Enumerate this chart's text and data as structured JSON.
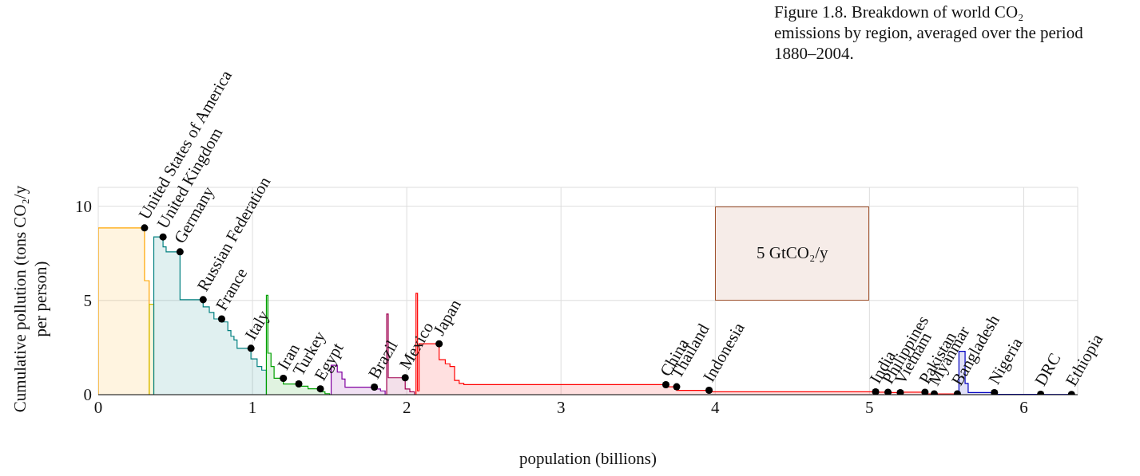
{
  "chart_data": {
    "type": "area",
    "title": "Figure 1.8. Breakdown of world CO₂ emissions by region, averaged over the period 1880–2004.",
    "xlabel": "population (billions)",
    "ylabel": "Cumulative pollution (tons CO₂/y per person)",
    "xlim": [
      0,
      6.35
    ],
    "xticks": [
      0,
      1,
      2,
      3,
      4,
      5,
      6
    ],
    "ylim": [
      0,
      11
    ],
    "yticks": [
      0,
      5,
      10
    ],
    "grid": true,
    "marker": "none",
    "series": [
      {
        "color": "#ffa500",
        "x": [
          0,
          0,
          0.3,
          0.3,
          0.33,
          0.33
        ],
        "values": [
          0,
          8.85,
          8.85,
          6.05,
          6.05,
          0
        ]
      },
      {
        "color": "#d4c000",
        "x": [
          0.33,
          0.33,
          0.36,
          0.36
        ],
        "values": [
          0,
          4.8,
          4.8,
          0
        ]
      },
      {
        "color": "#008080",
        "x": [
          0.36,
          0.36,
          0.42,
          0.42,
          0.44,
          0.44,
          0.53,
          0.53,
          0.68,
          0.68,
          0.72,
          0.72,
          0.75,
          0.75,
          0.8,
          0.8,
          0.84,
          0.84,
          0.86,
          0.86,
          0.88,
          0.88,
          0.9,
          0.9,
          0.99,
          0.99,
          1.03,
          1.03,
          1.06,
          1.06,
          1.09,
          1.09
        ],
        "values": [
          0,
          8.37,
          8.37,
          7.84,
          7.84,
          7.58,
          7.58,
          5.04,
          5.04,
          4.66,
          4.66,
          4.36,
          4.36,
          4.02,
          4.02,
          3.86,
          3.86,
          3.4,
          3.4,
          3.1,
          3.1,
          2.9,
          2.9,
          2.46,
          2.46,
          1.9,
          1.9,
          1.5,
          1.5,
          1.3,
          1.3,
          0
        ]
      },
      {
        "color": "#00a000",
        "x": [
          1.09,
          1.09,
          1.1,
          1.1,
          1.12,
          1.12,
          1.14,
          1.14,
          1.2,
          1.2,
          1.3,
          1.3,
          1.36,
          1.36,
          1.44,
          1.44,
          1.47,
          1.47,
          1.5,
          1.5
        ],
        "values": [
          0,
          5.27,
          5.27,
          2.2,
          2.2,
          1.5,
          1.5,
          0.87,
          0.87,
          0.57,
          0.57,
          0.45,
          0.45,
          0.31,
          0.31,
          0.15,
          0.15,
          0.05,
          0.05,
          0
        ]
      },
      {
        "color": "#8000a0",
        "x": [
          1.51,
          1.51,
          1.55,
          1.55,
          1.58,
          1.58,
          1.6,
          1.6,
          1.79,
          1.79,
          1.83,
          1.83,
          1.86,
          1.86
        ],
        "values": [
          0,
          1.56,
          1.56,
          1.2,
          1.2,
          0.83,
          0.83,
          0.4,
          0.4,
          0.3,
          0.3,
          0.2,
          0.2,
          0
        ]
      },
      {
        "color": "#a00050",
        "x": [
          1.87,
          1.87,
          1.88,
          1.88,
          1.99,
          1.99,
          2.02,
          2.02,
          2.05,
          2.05
        ],
        "values": [
          0,
          4.28,
          4.28,
          0.9,
          0.9,
          0.3,
          0.3,
          0.15,
          0.15,
          0
        ]
      },
      {
        "color": "#ff0000",
        "x": [
          2.06,
          2.06,
          2.07,
          2.07,
          2.08,
          2.08,
          2.21,
          2.21,
          2.25,
          2.25,
          2.28,
          2.28,
          2.31,
          2.31,
          2.34,
          2.34,
          2.37,
          2.37,
          3.68,
          3.68,
          3.75,
          3.75,
          3.96,
          3.96,
          5.04,
          5.04,
          5.12,
          5.12,
          5.2,
          5.2,
          5.36,
          5.36,
          5.42,
          5.42,
          5.57,
          5.57
        ],
        "values": [
          0,
          5.38,
          5.38,
          0.2,
          0.2,
          2.7,
          2.7,
          1.86,
          1.86,
          1.64,
          1.64,
          1.5,
          1.5,
          0.76,
          0.76,
          0.6,
          0.6,
          0.53,
          0.53,
          0.42,
          0.42,
          0.23,
          0.23,
          0.15,
          0.15,
          0.13,
          0.13,
          0.11,
          0.11,
          0.13,
          0.13,
          0.04,
          0.04,
          0.04,
          0.04,
          0
        ]
      },
      {
        "color": "#0000c0",
        "x": [
          5.58,
          5.58,
          5.62,
          5.62,
          5.64,
          5.64,
          5.81,
          5.81,
          6.11,
          6.11,
          6.31,
          6.31
        ],
        "values": [
          0,
          2.3,
          2.3,
          0.6,
          0.6,
          0.11,
          0.11,
          0.02,
          0.02,
          0.01,
          0.01,
          0
        ]
      },
      {
        "type": "scatter",
        "color": "#000000",
        "marker": "circle",
        "x": [
          0.3,
          0.42,
          0.53,
          0.68,
          0.8,
          0.99,
          1.2,
          1.3,
          1.44,
          1.79,
          1.99,
          2.21,
          3.68,
          3.75,
          3.96,
          5.04,
          5.12,
          5.2,
          5.36,
          5.42,
          5.57,
          5.81,
          6.11,
          6.31
        ],
        "values": [
          8.85,
          8.37,
          7.58,
          5.04,
          4.02,
          2.46,
          0.87,
          0.57,
          0.31,
          0.4,
          0.9,
          2.7,
          0.53,
          0.42,
          0.23,
          0.15,
          0.13,
          0.11,
          0.13,
          0.04,
          0.04,
          0.11,
          0.02,
          0.01
        ]
      }
    ],
    "annotations": [
      {
        "text": "United States of America",
        "x": 0.3,
        "y": 8.85
      },
      {
        "text": "United Kingdom",
        "x": 0.42,
        "y": 8.37
      },
      {
        "text": "Germany",
        "x": 0.53,
        "y": 7.58
      },
      {
        "text": "Russian Federation",
        "x": 0.68,
        "y": 5.04
      },
      {
        "text": "France",
        "x": 0.8,
        "y": 4.02
      },
      {
        "text": "Italy",
        "x": 0.99,
        "y": 2.46
      },
      {
        "text": "Iran",
        "x": 1.2,
        "y": 0.87
      },
      {
        "text": "Turkey",
        "x": 1.3,
        "y": 0.57
      },
      {
        "text": "Egypt",
        "x": 1.44,
        "y": 0.31
      },
      {
        "text": "Brazil",
        "x": 1.79,
        "y": 0.4
      },
      {
        "text": "Mexico",
        "x": 1.99,
        "y": 0.9
      },
      {
        "text": "Japan",
        "x": 2.21,
        "y": 2.7
      },
      {
        "text": "China",
        "x": 3.68,
        "y": 0.53
      },
      {
        "text": "Thailand",
        "x": 3.75,
        "y": 0.42
      },
      {
        "text": "Indonesia",
        "x": 3.96,
        "y": 0.23
      },
      {
        "text": "India",
        "x": 5.04,
        "y": 0.15
      },
      {
        "text": "Philippines",
        "x": 5.12,
        "y": 0.13
      },
      {
        "text": "Vietnam",
        "x": 5.2,
        "y": 0.11
      },
      {
        "text": "Pakistan",
        "x": 5.36,
        "y": 0.13
      },
      {
        "text": "Myanmar",
        "x": 5.42,
        "y": 0.04
      },
      {
        "text": "Bangladesh",
        "x": 5.57,
        "y": 0.04
      },
      {
        "text": "Nigeria",
        "x": 5.81,
        "y": 0.11
      },
      {
        "text": "DRC",
        "x": 6.11,
        "y": 0.02
      },
      {
        "text": "Ethiopia",
        "x": 6.31,
        "y": 0.01
      },
      "5 GtCO₂/y"
    ]
  }
}
